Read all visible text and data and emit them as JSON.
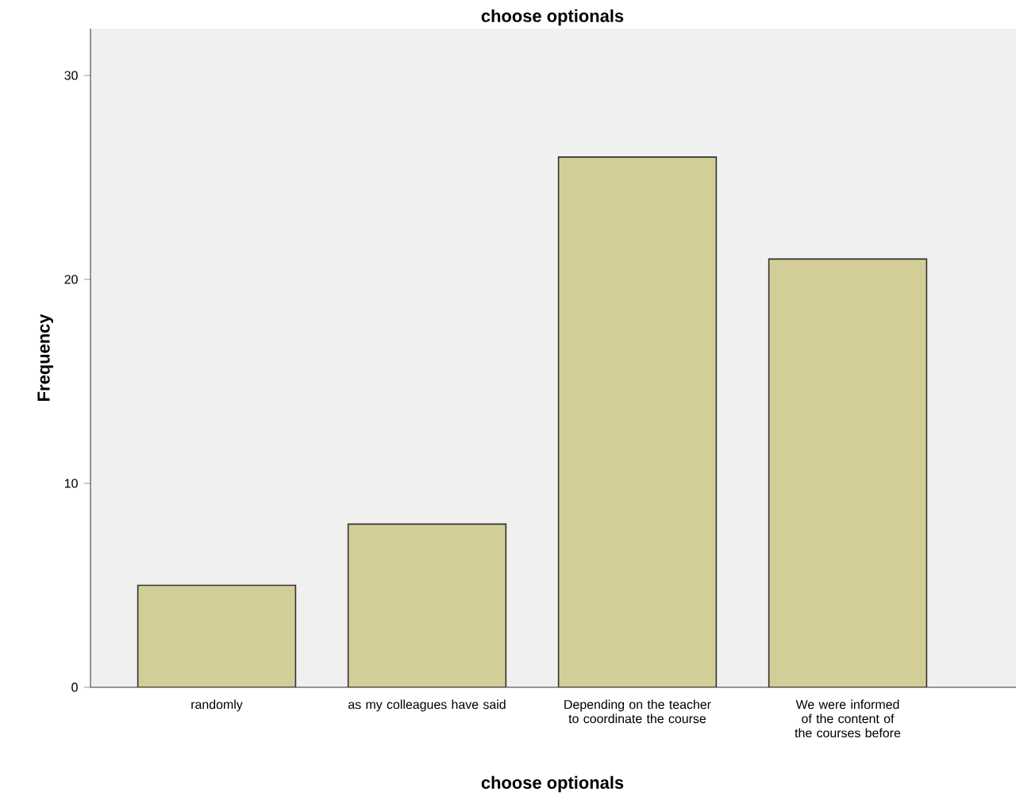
{
  "chart_data": {
    "type": "bar",
    "title": "choose optionals",
    "xlabel": "choose optionals",
    "ylabel": "Frequency",
    "categories": [
      "randomly",
      "as my colleagues have said",
      "Depending on the teacher to coordinate the course",
      "We were informed of the content of the courses before"
    ],
    "values": [
      5,
      8,
      26,
      21
    ],
    "color": "#d3ce97",
    "ylim": [
      0,
      32.3
    ],
    "yticks": [
      0,
      10,
      20,
      30
    ],
    "grid": false
  }
}
